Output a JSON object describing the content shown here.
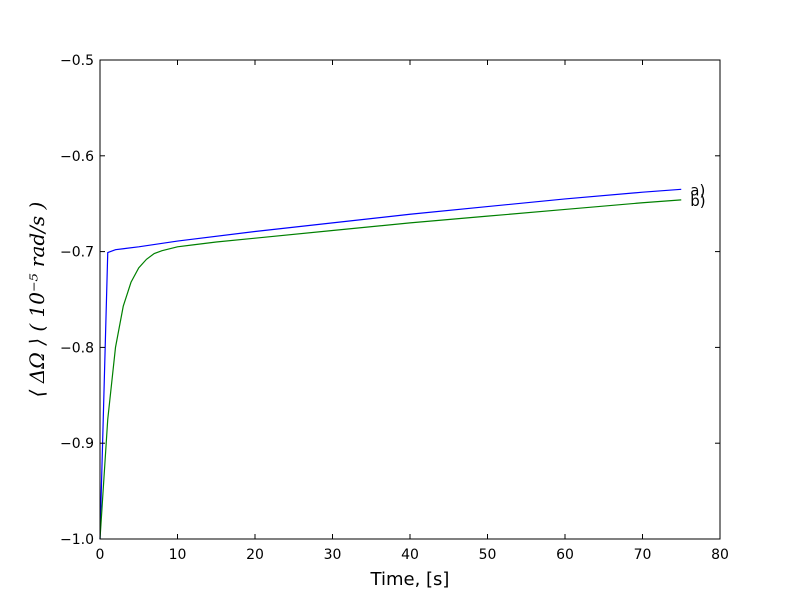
{
  "chart_data": {
    "type": "line",
    "title": "",
    "xlabel": "Time, [s]",
    "ylabel": "⟨ ΔΩ ⟩    ( 10⁻⁵ rad/s )",
    "xlim": [
      0,
      80
    ],
    "ylim": [
      -1.0,
      -0.5
    ],
    "xticks": [
      0,
      10,
      20,
      30,
      40,
      50,
      60,
      70,
      80
    ],
    "xtick_labels": [
      "0",
      "10",
      "20",
      "30",
      "40",
      "50",
      "60",
      "70",
      "80"
    ],
    "yticks": [
      -1.0,
      -0.9,
      -0.8,
      -0.7,
      -0.6,
      -0.5
    ],
    "ytick_labels": [
      "−1.0",
      "−0.9",
      "−0.8",
      "−0.7",
      "−0.6",
      "−0.5"
    ],
    "grid": false,
    "legend": "none",
    "series": [
      {
        "name": "a)",
        "color": "#0000ff",
        "x": [
          0,
          1,
          2,
          3,
          5,
          10,
          20,
          30,
          40,
          50,
          60,
          70,
          75
        ],
        "y": [
          -1.0,
          -0.701,
          -0.698,
          -0.697,
          -0.695,
          -0.689,
          -0.679,
          -0.67,
          -0.661,
          -0.653,
          -0.645,
          -0.638,
          -0.635
        ]
      },
      {
        "name": "b)",
        "color": "#008000",
        "x": [
          0,
          1,
          2,
          3,
          4,
          5,
          6,
          7,
          8,
          10,
          12,
          15,
          20,
          30,
          40,
          50,
          60,
          70,
          75
        ],
        "y": [
          -1.0,
          -0.875,
          -0.8,
          -0.757,
          -0.732,
          -0.717,
          -0.708,
          -0.702,
          -0.699,
          -0.695,
          -0.693,
          -0.69,
          -0.686,
          -0.678,
          -0.67,
          -0.663,
          -0.656,
          -0.649,
          -0.646
        ]
      }
    ]
  }
}
